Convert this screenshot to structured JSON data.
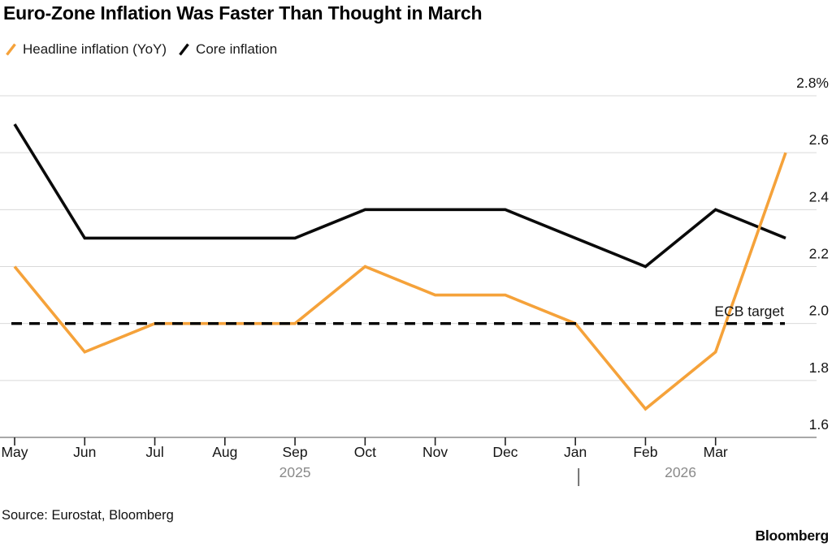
{
  "title": "Euro-Zone Inflation Was Faster Than Thought in March",
  "legend": [
    {
      "label": "Headline inflation (YoY)",
      "color": "#F5A23A"
    },
    {
      "label": "Core inflation",
      "color": "#0A0A0A"
    }
  ],
  "chart_data": {
    "type": "line",
    "categories": [
      "May",
      "Jun",
      "Jul",
      "Aug",
      "Sep",
      "Oct",
      "Nov",
      "Dec",
      "Jan",
      "Feb",
      "Mar",
      ""
    ],
    "series": [
      {
        "name": "Headline inflation (YoY)",
        "color": "#F5A23A",
        "values": [
          2.2,
          1.9,
          2.0,
          2.0,
          2.0,
          2.2,
          2.1,
          2.1,
          2.0,
          1.7,
          1.9,
          2.6
        ]
      },
      {
        "name": "Core inflation",
        "color": "#0A0A0A",
        "values": [
          2.7,
          2.3,
          2.3,
          2.3,
          2.3,
          2.4,
          2.4,
          2.4,
          2.3,
          2.2,
          2.4,
          2.3
        ]
      }
    ],
    "reference_line": {
      "label": "ECB target",
      "value": 2.0,
      "style": "dashed",
      "color": "#000000"
    },
    "ylim": [
      1.6,
      2.8
    ],
    "yticks": [
      2.8,
      2.6,
      2.4,
      2.2,
      2.0,
      1.8,
      1.6
    ],
    "ytick_labels": [
      "2.8%",
      "2.6",
      "2.4",
      "2.2",
      "2.0",
      "1.8",
      "1.6"
    ],
    "year_markers": [
      {
        "label": "2025",
        "at_index": 4
      },
      {
        "label": "2026",
        "at_index": 9.5
      }
    ],
    "year_divider_index": 8,
    "grid": "horizontal",
    "legend_position": "top-left",
    "colors": {
      "gridline": "#D9D9D9",
      "axis_line": "#8C8C8C",
      "tick": "#222222",
      "year_label": "#8A8A8A"
    }
  },
  "footer": {
    "source": "Source: Eurostat, Bloomberg",
    "logo": "Bloomberg"
  }
}
